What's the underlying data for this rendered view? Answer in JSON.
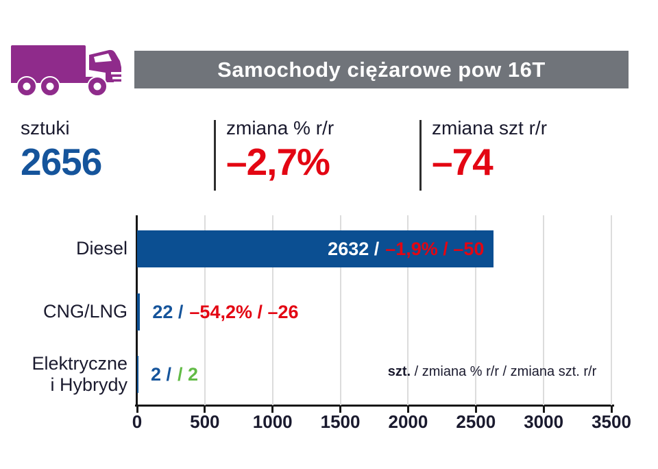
{
  "header": {
    "title": "Samochody ciężarowe pow 16T",
    "bar_color": "#70747A",
    "icon_color": "#8F2B8B",
    "icon": "truck-icon"
  },
  "stats": [
    {
      "label": "sztuki",
      "value": "2656",
      "value_color": "#15549B"
    },
    {
      "label": "zmiana % r/r",
      "value": "–2,7%",
      "value_color": "#E30613"
    },
    {
      "label": "zmiana szt r/r",
      "value": "–74",
      "value_color": "#E30613"
    }
  ],
  "chart_data": {
    "type": "bar",
    "orientation": "horizontal",
    "title": "Samochody ciężarowe pow 16T",
    "categories": [
      "Diesel",
      "CNG/LNG",
      "Elektryczne\ni Hybrydy"
    ],
    "series": [
      {
        "name": "szt.",
        "values": [
          2632,
          22,
          2
        ]
      },
      {
        "name": "zmiana % r/r",
        "values": [
          "–1,9%",
          "–54,2%",
          null
        ]
      },
      {
        "name": "zmiana szt. r/r",
        "values": [
          -50,
          -26,
          2
        ]
      }
    ],
    "xlim": [
      0,
      3500
    ],
    "x_ticks": [
      0,
      500,
      1000,
      1500,
      2000,
      2500,
      3000,
      3500
    ],
    "grid": true,
    "bar_color": "#0B4F92",
    "gridline_color": "#DCDCDC",
    "note": {
      "prefix": "szt.",
      "rest": " / zmiana % r/r / zmiana szt. r/r"
    },
    "bars": [
      {
        "label": "Diesel",
        "value": 2632,
        "value_label": "2632 /",
        "change_label": "–1,9% / –50",
        "value_label_color": "#FFFFFF",
        "change_color": "#E30613",
        "text_inside": true
      },
      {
        "label": "CNG/LNG",
        "value": 22,
        "value_label": "22 /",
        "change_label": "–54,2% / –26",
        "value_label_color": "#15549B",
        "change_color": "#E30613",
        "text_inside": false
      },
      {
        "label": "Elektryczne\ni Hybrydy",
        "value": 2,
        "value_label": "2 /",
        "change_label": "/ 2",
        "value_label_color": "#15549B",
        "change_color": "#62BB46",
        "text_inside": false
      }
    ]
  }
}
